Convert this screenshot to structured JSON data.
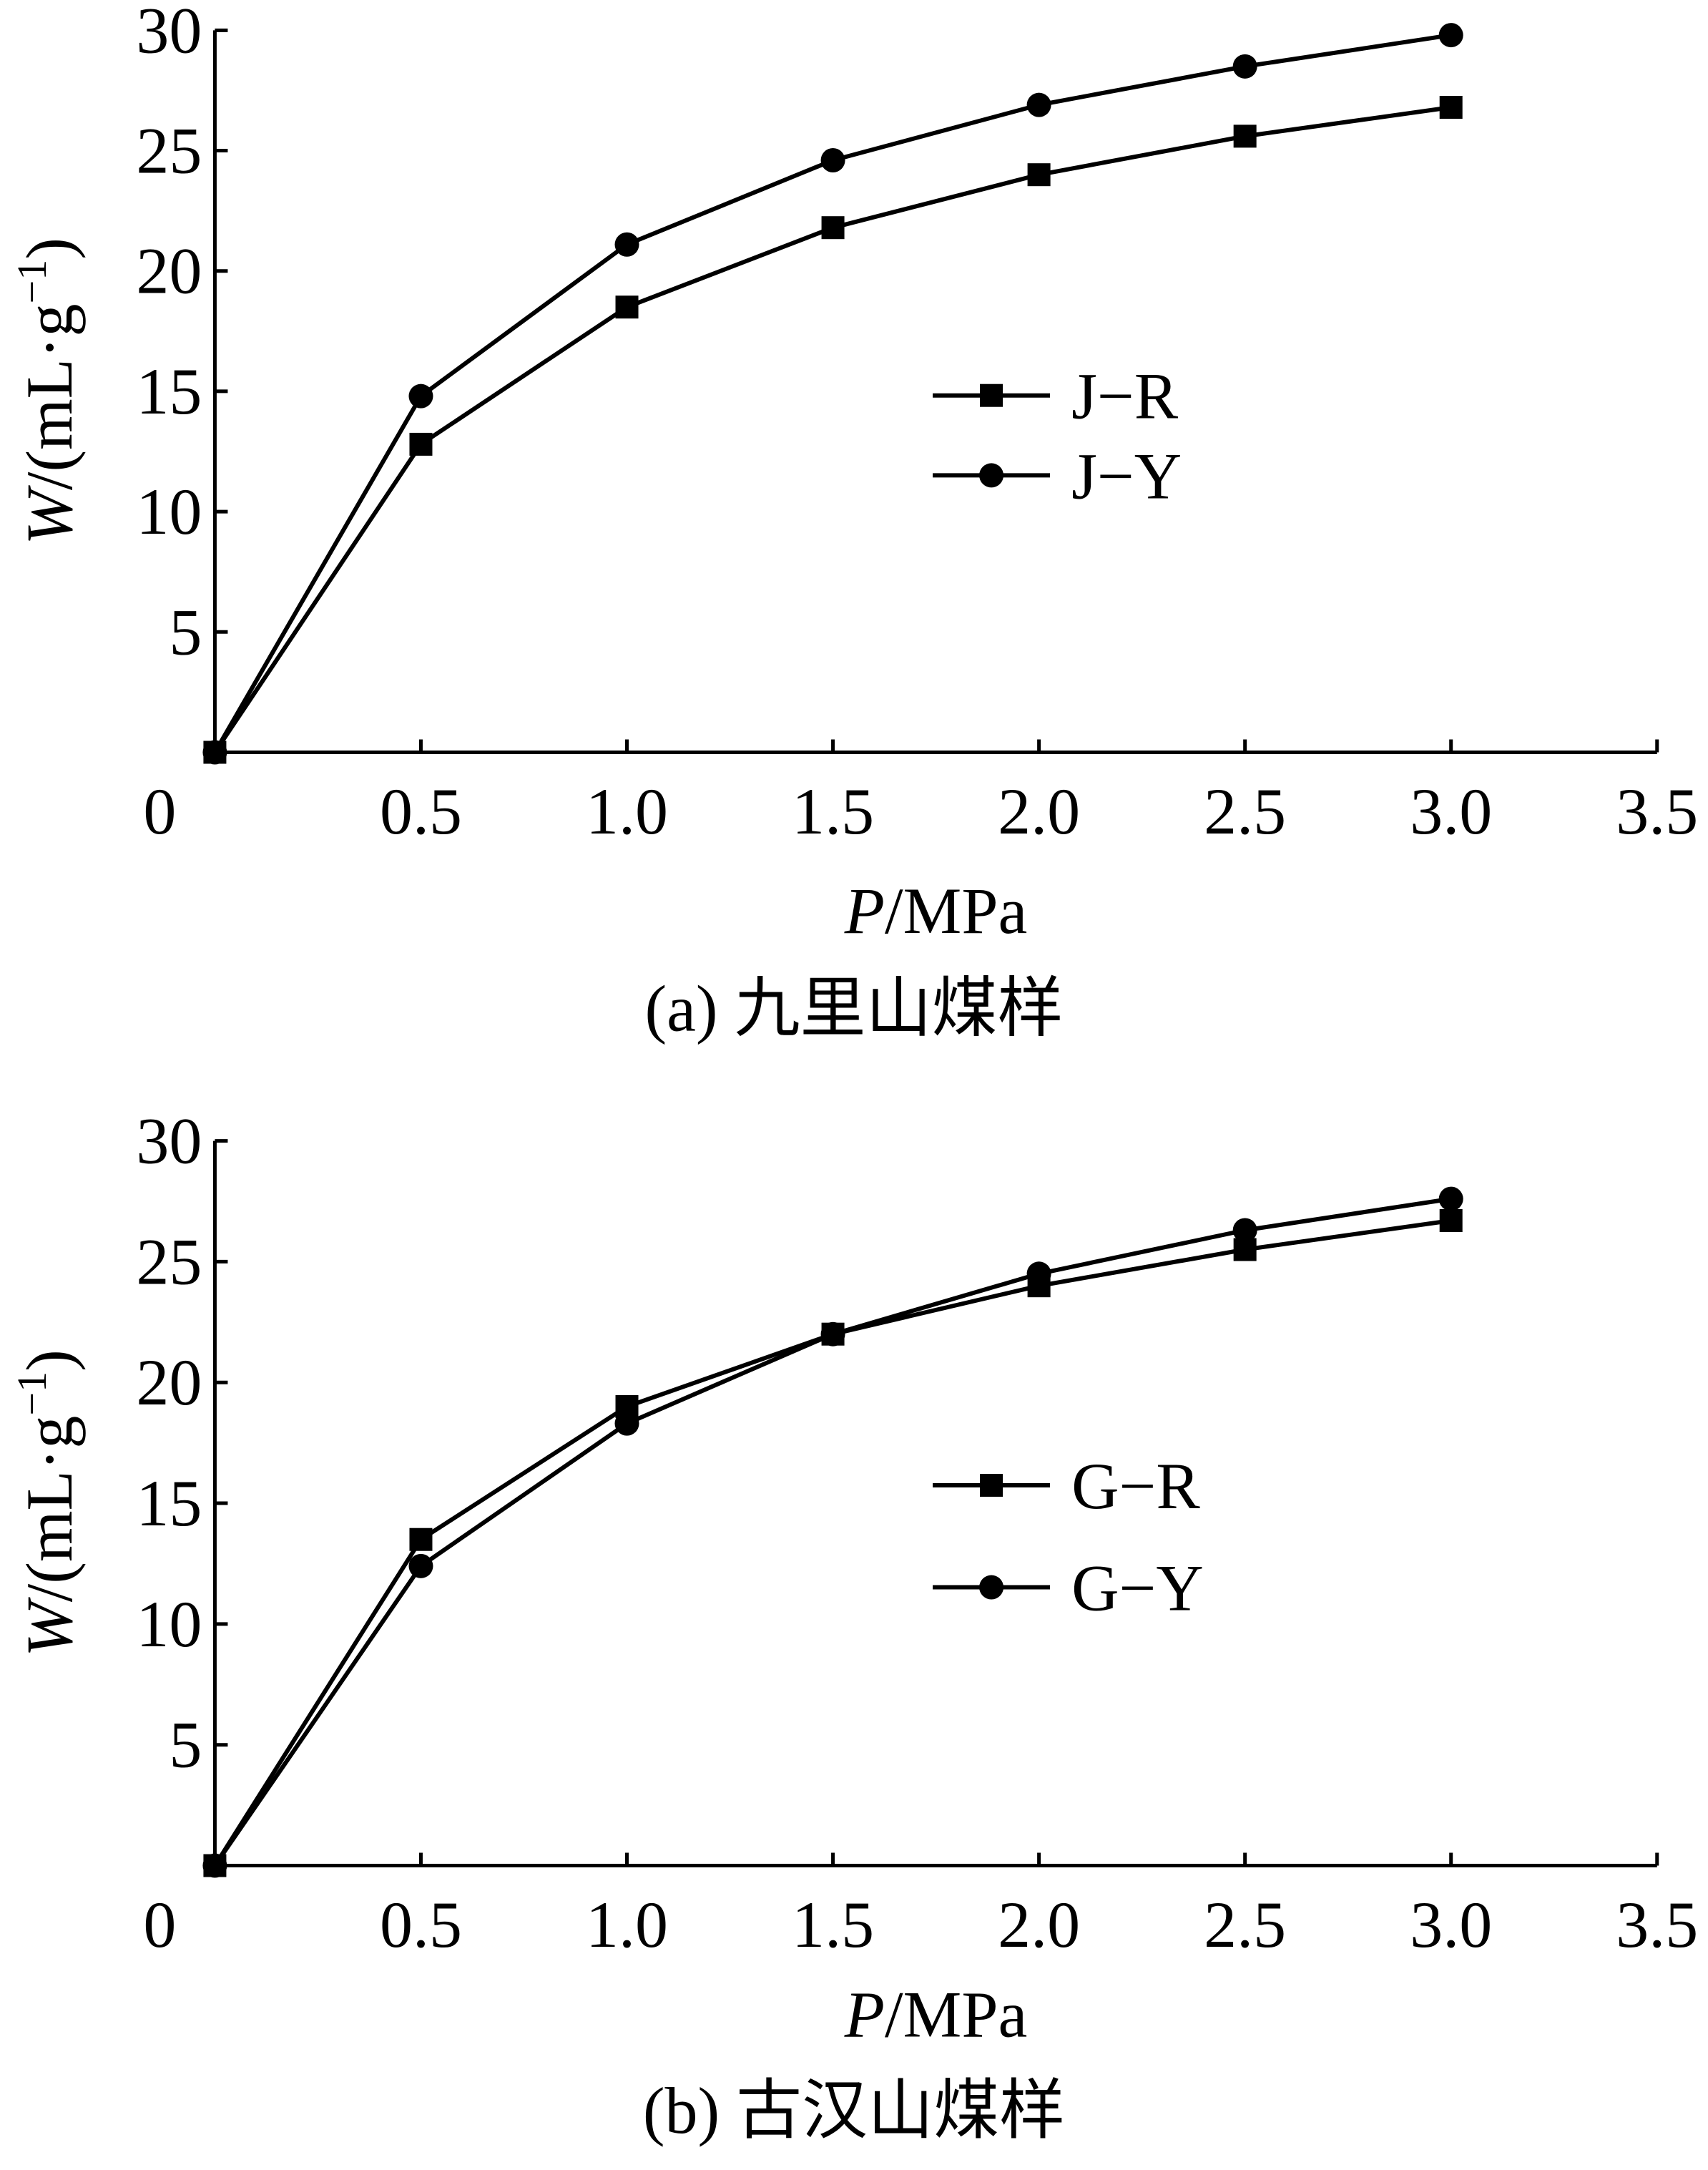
{
  "chart_data": [
    {
      "type": "line",
      "caption": "(a) 九里山煤样",
      "xlabel_italic": "P",
      "xlabel_rest": "/MPa",
      "ylabel_italic": "W",
      "ylabel_rest": "/(mL·g",
      "ylabel_exp": "−1",
      "ylabel_close": ")",
      "xlim": [
        0,
        3.5
      ],
      "ylim": [
        0,
        30
      ],
      "xticks": [
        0.5,
        1.0,
        1.5,
        2.0,
        2.5,
        3.0,
        3.5
      ],
      "xtick_labels": [
        "0.5",
        "1.0",
        "1.5",
        "2.0",
        "2.5",
        "3.0",
        "3.5"
      ],
      "yticks": [
        5,
        10,
        15,
        20,
        25,
        30
      ],
      "ytick_labels": [
        "5",
        "10",
        "15",
        "20",
        "25",
        "30"
      ],
      "origin_label": "0",
      "grid": false,
      "legend_position": "center-right",
      "series": [
        {
          "name": "J−R",
          "marker": "square",
          "x": [
            0,
            0.5,
            1.0,
            1.5,
            2.0,
            2.5,
            3.0
          ],
          "y": [
            0,
            12.8,
            18.5,
            21.8,
            24.0,
            25.6,
            26.8
          ]
        },
        {
          "name": "J−Y",
          "marker": "circle",
          "x": [
            0,
            0.5,
            1.0,
            1.5,
            2.0,
            2.5,
            3.0
          ],
          "y": [
            0,
            14.8,
            21.1,
            24.6,
            26.9,
            28.5,
            29.8
          ]
        }
      ]
    },
    {
      "type": "line",
      "caption": "(b) 古汉山煤样",
      "xlabel_italic": "P",
      "xlabel_rest": "/MPa",
      "ylabel_italic": "W",
      "ylabel_rest": "/(mL·g",
      "ylabel_exp": "−1",
      "ylabel_close": ")",
      "xlim": [
        0,
        3.5
      ],
      "ylim": [
        0,
        30
      ],
      "xticks": [
        0.5,
        1.0,
        1.5,
        2.0,
        2.5,
        3.0,
        3.5
      ],
      "xtick_labels": [
        "0.5",
        "1.0",
        "1.5",
        "2.0",
        "2.5",
        "3.0",
        "3.5"
      ],
      "yticks": [
        5,
        10,
        15,
        20,
        25,
        30
      ],
      "ytick_labels": [
        "5",
        "10",
        "15",
        "20",
        "25",
        "30"
      ],
      "origin_label": "0",
      "grid": false,
      "legend_position": "center-right",
      "series": [
        {
          "name": "G−R",
          "marker": "square",
          "x": [
            0,
            0.5,
            1.0,
            1.5,
            2.0,
            2.5,
            3.0
          ],
          "y": [
            0,
            13.5,
            19.0,
            22.0,
            24.0,
            25.5,
            26.7
          ]
        },
        {
          "name": "G−Y",
          "marker": "circle",
          "x": [
            0,
            0.5,
            1.0,
            1.5,
            2.0,
            2.5,
            3.0
          ],
          "y": [
            0,
            12.4,
            18.3,
            22.0,
            24.5,
            26.3,
            27.6
          ]
        }
      ]
    }
  ]
}
